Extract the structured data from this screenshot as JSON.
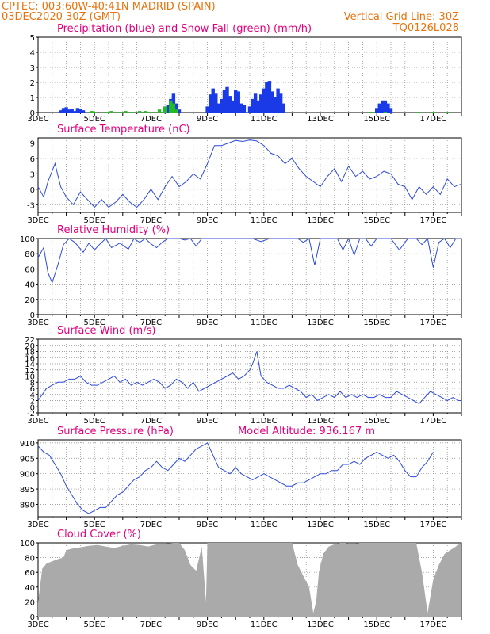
{
  "header": {
    "line1": "CPTEC:   003:60W-40:41N   MADRID (SPAIN)",
    "line2": "03DEC2020 30Z (GMT)",
    "grid_note": "Vertical Grid Line: 30Z",
    "code": "TQ0126L028"
  },
  "colors": {
    "header": "#e8730c",
    "title": "#e3007d",
    "rain": "#1a3ae8",
    "snow": "#22bb22",
    "line": "#2d4bdb",
    "cloud": "#aaaaaa"
  },
  "chart_data": [
    {
      "id": "precip",
      "type": "bar",
      "title": "Precipitation (blue) and Snow Fall (green) (mm/h)",
      "xlabel": "",
      "ylabel": "",
      "x_ticks": [
        "3DEC",
        "5DEC",
        "7DEC",
        "9DEC",
        "11DEC",
        "13DEC",
        "15DEC",
        "17DEC"
      ],
      "yticks": [
        0,
        1,
        2,
        3,
        4,
        5
      ],
      "ylim": [
        0,
        5
      ],
      "series": [
        {
          "values": [
            [
              3.8,
              0.15
            ],
            [
              3.9,
              0.3
            ],
            [
              4.0,
              0.35
            ],
            [
              4.1,
              0.2
            ],
            [
              4.2,
              0.25
            ],
            [
              4.3,
              0.1
            ],
            [
              4.4,
              0.3
            ],
            [
              4.5,
              0.25
            ],
            [
              4.6,
              0.15
            ],
            [
              7.5,
              0.2
            ],
            [
              7.6,
              0.5
            ],
            [
              7.7,
              0.9
            ],
            [
              7.8,
              1.3
            ],
            [
              7.9,
              0.6
            ],
            [
              8.0,
              0.2
            ],
            [
              9.0,
              0.4
            ],
            [
              9.1,
              1.2
            ],
            [
              9.2,
              1.6
            ],
            [
              9.3,
              1.3
            ],
            [
              9.4,
              0.6
            ],
            [
              9.5,
              0.9
            ],
            [
              9.6,
              1.5
            ],
            [
              9.7,
              1.7
            ],
            [
              9.8,
              1.1
            ],
            [
              9.9,
              0.8
            ],
            [
              10.0,
              1.5
            ],
            [
              10.1,
              1.4
            ],
            [
              10.2,
              0.6
            ],
            [
              10.3,
              0.5
            ],
            [
              10.5,
              0.4
            ],
            [
              10.6,
              0.9
            ],
            [
              10.7,
              1.3
            ],
            [
              10.8,
              0.8
            ],
            [
              10.9,
              1.2
            ],
            [
              11.0,
              1.6
            ],
            [
              11.1,
              2.0
            ],
            [
              11.2,
              2.1
            ],
            [
              11.3,
              1.4
            ],
            [
              11.4,
              1.0
            ],
            [
              11.5,
              1.6
            ],
            [
              11.6,
              1.3
            ],
            [
              11.7,
              0.6
            ],
            [
              15.0,
              0.3
            ],
            [
              15.1,
              0.6
            ],
            [
              15.2,
              0.8
            ],
            [
              15.3,
              0.8
            ],
            [
              15.4,
              0.6
            ],
            [
              15.5,
              0.3
            ]
          ]
        },
        {
          "values": [
            [
              4.9,
              0.1
            ],
            [
              5.0,
              0.05
            ],
            [
              5.4,
              0.05
            ],
            [
              5.6,
              0.1
            ],
            [
              5.9,
              0.05
            ],
            [
              6.1,
              0.1
            ],
            [
              6.3,
              0.05
            ],
            [
              6.6,
              0.1
            ],
            [
              6.8,
              0.1
            ],
            [
              7.0,
              0.05
            ],
            [
              7.3,
              0.2
            ],
            [
              7.5,
              0.4
            ],
            [
              7.7,
              0.8
            ],
            [
              7.8,
              0.6
            ],
            [
              7.9,
              0.2
            ],
            [
              14.8,
              0.05
            ],
            [
              15.3,
              0.05
            ],
            [
              16.5,
              0.05
            ],
            [
              17.0,
              0.05
            ],
            [
              17.5,
              0.05
            ]
          ]
        }
      ]
    },
    {
      "id": "temp",
      "type": "line",
      "title": "Surface Temperature (nC)",
      "x_ticks": [
        "3DEC",
        "5DEC",
        "7DEC",
        "9DEC",
        "11DEC",
        "13DEC",
        "15DEC",
        "17DEC"
      ],
      "yticks": [
        -3,
        0,
        3,
        6,
        9
      ],
      "ylim": [
        -4.5,
        10
      ],
      "x": [
        3.0,
        3.2,
        3.35,
        3.6,
        3.8,
        4.0,
        4.25,
        4.5,
        4.75,
        5.0,
        5.25,
        5.5,
        5.75,
        6.0,
        6.25,
        6.5,
        6.75,
        7.0,
        7.25,
        7.5,
        7.75,
        8.0,
        8.25,
        8.5,
        8.75,
        9.0,
        9.25,
        9.5,
        9.75,
        10.0,
        10.25,
        10.5,
        10.75,
        11.0,
        11.25,
        11.5,
        11.75,
        12.0,
        12.25,
        12.5,
        12.75,
        13.0,
        13.25,
        13.5,
        13.75,
        14.0,
        14.25,
        14.5,
        14.75,
        15.0,
        15.25,
        15.5,
        15.75,
        16.0,
        16.25,
        16.5,
        16.75,
        17.0,
        17.25,
        17.5,
        17.75,
        18.0
      ],
      "values": [
        0.5,
        -1.5,
        1.5,
        5.0,
        0.5,
        -1.5,
        -3.0,
        -0.5,
        -2.0,
        -3.5,
        -2.0,
        -3.5,
        -2.5,
        -1.0,
        -2.5,
        -3.5,
        -2.0,
        0.0,
        -2.0,
        0.5,
        2.5,
        0.5,
        1.5,
        3.0,
        2.0,
        5.0,
        8.5,
        8.5,
        9.0,
        9.5,
        9.3,
        9.6,
        9.4,
        8.5,
        7.0,
        6.5,
        5.0,
        6.0,
        4.0,
        2.5,
        1.5,
        0.5,
        2.5,
        4.0,
        1.5,
        4.5,
        2.5,
        3.5,
        2.0,
        2.5,
        3.5,
        3.0,
        1.0,
        0.5,
        -2.0,
        0.5,
        -1.0,
        0.5,
        -1.0,
        2.0,
        0.5,
        1.0
      ]
    },
    {
      "id": "rh",
      "type": "line",
      "title": "Relative Humidity (%)",
      "x_ticks": [
        "3DEC",
        "5DEC",
        "7DEC",
        "9DEC",
        "11DEC",
        "13DEC",
        "15DEC",
        "17DEC"
      ],
      "yticks": [
        0,
        20,
        40,
        60,
        80,
        100
      ],
      "ylim": [
        0,
        100
      ],
      "x": [
        3.0,
        3.2,
        3.35,
        3.5,
        3.7,
        3.9,
        4.1,
        4.3,
        4.6,
        4.8,
        5.0,
        5.2,
        5.4,
        5.6,
        5.9,
        6.2,
        6.4,
        6.6,
        6.8,
        7.0,
        7.2,
        7.4,
        7.6,
        7.8,
        8.0,
        8.2,
        8.4,
        8.6,
        8.8,
        9.0,
        9.2,
        9.5,
        9.9,
        10.2,
        10.6,
        10.9,
        11.2,
        11.5,
        11.8,
        12.2,
        12.4,
        12.6,
        12.8,
        13.0,
        13.2,
        13.4,
        13.6,
        13.8,
        14.0,
        14.2,
        14.4,
        14.6,
        14.8,
        15.0,
        15.2,
        15.5,
        15.8,
        16.1,
        16.4,
        16.6,
        16.8,
        17.0,
        17.2,
        17.4,
        17.6,
        17.8,
        18.0
      ],
      "values": [
        75,
        88,
        55,
        42,
        65,
        92,
        100,
        95,
        82,
        94,
        85,
        93,
        100,
        88,
        94,
        86,
        100,
        95,
        100,
        93,
        88,
        95,
        100,
        100,
        100,
        98,
        100,
        90,
        100,
        100,
        100,
        100,
        100,
        100,
        100,
        96,
        100,
        100,
        100,
        100,
        95,
        100,
        65,
        100,
        100,
        100,
        100,
        85,
        100,
        78,
        100,
        100,
        90,
        100,
        100,
        100,
        85,
        100,
        100,
        92,
        100,
        62,
        95,
        100,
        88,
        100,
        100
      ]
    },
    {
      "id": "wind",
      "type": "line",
      "title": "Surface Wind (m/s)",
      "x_ticks": [
        "3DEC",
        "5DEC",
        "7DEC",
        "9DEC",
        "11DEC",
        "13DEC",
        "15DEC",
        "17DEC"
      ],
      "yticks": [
        -2,
        0,
        2,
        4,
        6,
        8,
        10,
        12,
        14,
        16,
        18,
        20,
        22
      ],
      "ylim": [
        -2,
        22
      ],
      "x": [
        3.0,
        3.15,
        3.3,
        3.5,
        3.7,
        3.9,
        4.1,
        4.3,
        4.5,
        4.7,
        4.9,
        5.1,
        5.3,
        5.5,
        5.7,
        5.9,
        6.1,
        6.3,
        6.5,
        6.7,
        6.9,
        7.1,
        7.3,
        7.5,
        7.7,
        7.9,
        8.1,
        8.3,
        8.5,
        8.7,
        8.9,
        9.1,
        9.3,
        9.5,
        9.7,
        9.9,
        10.1,
        10.3,
        10.5,
        10.6,
        10.75,
        10.9,
        11.1,
        11.3,
        11.5,
        11.7,
        11.9,
        12.1,
        12.3,
        12.5,
        12.7,
        12.9,
        13.1,
        13.3,
        13.5,
        13.7,
        13.9,
        14.1,
        14.3,
        14.5,
        14.7,
        14.9,
        15.1,
        15.3,
        15.5,
        15.7,
        15.9,
        16.1,
        16.3,
        16.5,
        16.7,
        16.9,
        17.1,
        17.3,
        17.5,
        17.7,
        17.9,
        18.0
      ],
      "values": [
        2,
        4,
        6,
        7,
        8,
        8,
        9,
        9,
        10,
        8,
        7,
        7,
        8,
        9,
        10,
        8,
        9,
        7,
        8,
        7,
        8,
        9,
        8,
        6,
        7,
        9,
        8,
        6,
        8,
        5,
        6,
        7,
        8,
        9,
        10,
        11,
        9,
        10,
        12,
        14,
        18,
        10,
        8,
        7,
        6,
        6,
        7,
        6,
        5,
        3,
        4,
        2,
        3,
        4,
        3,
        5,
        3,
        4,
        3,
        4,
        3,
        3,
        4,
        3,
        3,
        5,
        4,
        3,
        2,
        1,
        3,
        5,
        4,
        3,
        2,
        3,
        2,
        2
      ]
    },
    {
      "id": "pressure",
      "type": "line",
      "title": "Surface Pressure (hPa)",
      "annotation": "Model Altitude: 936.167 m",
      "x_ticks": [
        "3DEC",
        "5DEC",
        "7DEC",
        "9DEC",
        "11DEC",
        "13DEC",
        "15DEC",
        "17DEC"
      ],
      "yticks": [
        890,
        895,
        900,
        905,
        910
      ],
      "ylim": [
        886,
        911
      ],
      "x": [
        3.0,
        3.2,
        3.4,
        3.6,
        3.8,
        4.0,
        4.2,
        4.4,
        4.6,
        4.8,
        5.0,
        5.2,
        5.4,
        5.6,
        5.8,
        6.0,
        6.2,
        6.4,
        6.6,
        6.8,
        7.0,
        7.2,
        7.4,
        7.6,
        7.8,
        8.0,
        8.2,
        8.4,
        8.6,
        8.8,
        9.0,
        9.2,
        9.4,
        9.6,
        9.8,
        10.0,
        10.2,
        10.4,
        10.6,
        10.8,
        11.0,
        11.2,
        11.4,
        11.6,
        11.8,
        12.0,
        12.2,
        12.4,
        12.6,
        12.8,
        13.0,
        13.2,
        13.4,
        13.6,
        13.8,
        14.0,
        14.2,
        14.4,
        14.6,
        14.8,
        15.0,
        15.2,
        15.4,
        15.6,
        15.8,
        16.0,
        16.2,
        16.4,
        16.6,
        16.8,
        17.0
      ],
      "values": [
        909,
        907,
        906,
        903,
        900,
        896,
        893,
        890,
        888,
        887,
        888,
        889,
        889,
        891,
        893,
        894,
        896,
        898,
        899,
        901,
        902,
        904,
        902,
        901,
        903,
        905,
        904,
        906,
        908,
        909,
        910,
        906,
        902,
        901,
        900,
        902,
        900,
        899,
        898,
        899,
        900,
        899,
        898,
        897,
        896,
        896,
        897,
        897,
        898,
        899,
        900,
        900,
        901,
        901,
        903,
        903,
        904,
        903,
        905,
        906,
        907,
        906,
        905,
        906,
        904,
        901,
        899,
        899,
        902,
        904,
        907
      ]
    },
    {
      "id": "cloud",
      "type": "area",
      "title": "Cloud Cover (%)",
      "x_ticks": [
        "3DEC",
        "5DEC",
        "7DEC",
        "9DEC",
        "11DEC",
        "13DEC",
        "15DEC",
        "17DEC"
      ],
      "yticks": [
        0,
        20,
        40,
        60,
        80,
        100
      ],
      "ylim": [
        0,
        100
      ],
      "x": [
        3.0,
        3.15,
        3.3,
        3.5,
        3.7,
        3.9,
        4.0,
        4.2,
        4.5,
        4.8,
        5.1,
        5.4,
        5.7,
        6.0,
        6.3,
        6.6,
        6.9,
        7.2,
        7.5,
        7.8,
        8.0,
        8.2,
        8.4,
        8.6,
        8.8,
        8.95,
        9.0,
        9.3,
        9.6,
        9.9,
        10.2,
        10.5,
        10.8,
        11.1,
        11.4,
        11.7,
        12.0,
        12.2,
        12.4,
        12.6,
        12.75,
        12.85,
        12.95,
        13.1,
        13.3,
        13.5,
        13.7,
        13.9,
        14.1,
        14.4,
        14.7,
        15.0,
        15.3,
        15.6,
        15.9,
        16.2,
        16.4,
        16.6,
        16.8,
        17.0,
        17.2,
        17.4,
        17.6,
        17.8,
        18.0
      ],
      "values": [
        20,
        65,
        72,
        75,
        78,
        80,
        90,
        92,
        94,
        96,
        97,
        95,
        93,
        96,
        98,
        97,
        95,
        98,
        99,
        100,
        100,
        90,
        70,
        62,
        95,
        20,
        100,
        100,
        100,
        100,
        100,
        100,
        100,
        100,
        100,
        100,
        100,
        70,
        55,
        40,
        5,
        20,
        60,
        85,
        95,
        98,
        100,
        100,
        98,
        100,
        100,
        100,
        100,
        100,
        100,
        100,
        100,
        60,
        5,
        50,
        70,
        85,
        90,
        95,
        100
      ]
    }
  ]
}
